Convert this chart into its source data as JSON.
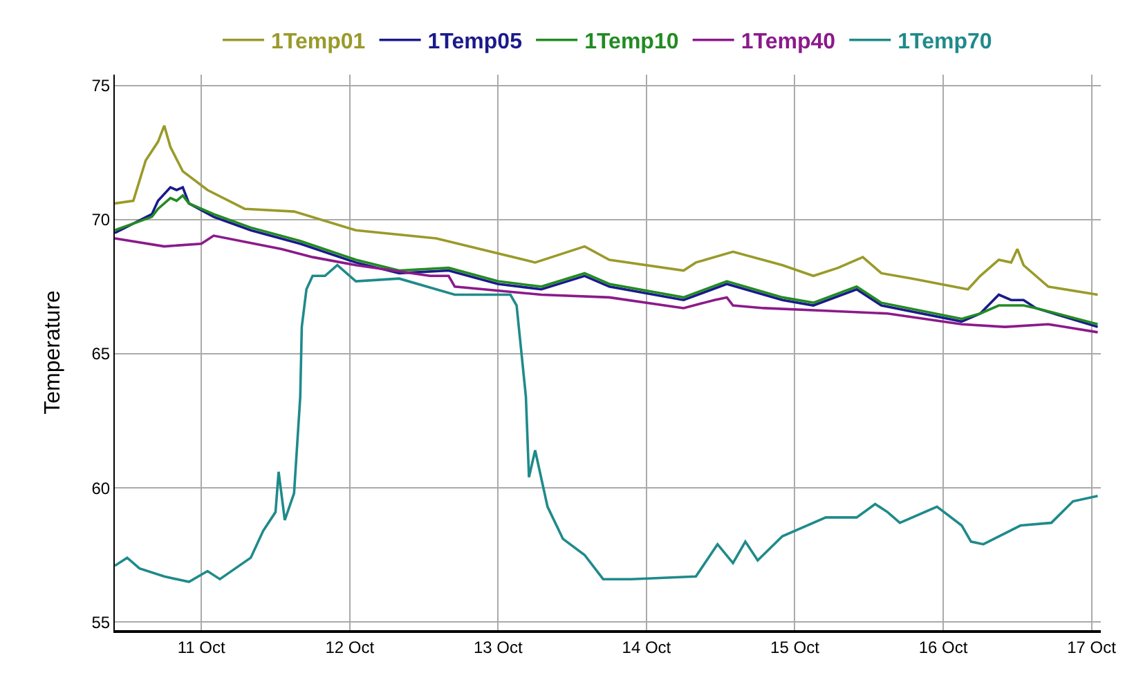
{
  "chart_data": {
    "type": "line",
    "ylabel": "Temperature",
    "xlim": [
      "--10-10T10:00",
      "--10-17T01:30"
    ],
    "xticks": [
      {
        "value": "--10-11",
        "label": "11 Oct"
      },
      {
        "value": "--10-12",
        "label": "12 Oct"
      },
      {
        "value": "--10-13",
        "label": "13 Oct"
      },
      {
        "value": "--10-14",
        "label": "14 Oct"
      },
      {
        "value": "--10-15",
        "label": "15 Oct"
      },
      {
        "value": "--10-16",
        "label": "16 Oct"
      },
      {
        "value": "--10-17",
        "label": "17 Oct"
      }
    ],
    "ylim": [
      54.7,
      75.4
    ],
    "yticks": [
      55,
      60,
      65,
      70,
      75
    ],
    "grid": true,
    "legend": "top",
    "marker": "none",
    "line_style": "solid",
    "series": [
      {
        "name": "1Temp01",
        "color": "#9a9a2a",
        "x": [
          "--10-10T10:00",
          "--10-10T13:00",
          "--10-10T15:00",
          "--10-10T17:00",
          "--10-10T18:00",
          "--10-10T19:00",
          "--10-10T21:00",
          "--10-11T01:00",
          "--10-11T07:00",
          "--10-11T15:00",
          "--10-12T01:00",
          "--10-12T14:00",
          "--10-13T06:00",
          "--10-13T14:00",
          "--10-13T18:00",
          "--10-14T06:00",
          "--10-14T08:00",
          "--10-14T14:00",
          "--10-14T22:00",
          "--10-15T03:00",
          "--10-15T07:00",
          "--10-15T11:00",
          "--10-15T14:00",
          "--10-15T19:00",
          "--10-16T04:00",
          "--10-16T06:00",
          "--10-16T09:00",
          "--10-16T11:00",
          "--10-16T12:00",
          "--10-16T13:00",
          "--10-16T17:00",
          "--10-17T01:00"
        ],
        "values": [
          70.6,
          70.7,
          72.2,
          72.9,
          73.5,
          72.7,
          71.8,
          71.1,
          70.4,
          70.3,
          69.6,
          69.3,
          68.4,
          69.0,
          68.5,
          68.1,
          68.4,
          68.8,
          68.3,
          67.9,
          68.2,
          68.6,
          68.0,
          67.8,
          67.4,
          67.9,
          68.5,
          68.4,
          68.9,
          68.3,
          67.5,
          67.2
        ]
      },
      {
        "name": "1Temp05",
        "color": "#1a1a8c",
        "x": [
          "--10-10T10:00",
          "--10-10T16:00",
          "--10-10T17:00",
          "--10-10T19:00",
          "--10-10T20:00",
          "--10-10T21:00",
          "--10-10T22:00",
          "--10-11T02:00",
          "--10-11T08:00",
          "--10-11T16:00",
          "--10-12T01:00",
          "--10-12T08:00",
          "--10-12T16:00",
          "--10-13T00:00",
          "--10-13T07:00",
          "--10-13T14:00",
          "--10-13T18:00",
          "--10-14T06:00",
          "--10-14T13:00",
          "--10-14T22:00",
          "--10-15T03:00",
          "--10-15T10:00",
          "--10-15T14:00",
          "--10-16T03:00",
          "--10-16T06:00",
          "--10-16T09:00",
          "--10-16T11:00",
          "--10-16T13:00",
          "--10-16T15:00",
          "--10-17T01:00"
        ],
        "values": [
          69.5,
          70.2,
          70.7,
          71.2,
          71.1,
          71.2,
          70.6,
          70.1,
          69.6,
          69.1,
          68.4,
          68.0,
          68.1,
          67.6,
          67.4,
          67.9,
          67.5,
          67.0,
          67.6,
          67.0,
          66.8,
          67.4,
          66.8,
          66.2,
          66.5,
          67.2,
          67.0,
          67.0,
          66.7,
          66.0
        ]
      },
      {
        "name": "1Temp10",
        "color": "#228b22",
        "x": [
          "--10-10T10:00",
          "--10-10T16:00",
          "--10-10T17:00",
          "--10-10T19:00",
          "--10-10T20:00",
          "--10-10T21:00",
          "--10-10T22:00",
          "--10-11T02:00",
          "--10-11T08:00",
          "--10-11T16:00",
          "--10-12T01:00",
          "--10-12T08:00",
          "--10-12T16:00",
          "--10-13T00:00",
          "--10-13T07:00",
          "--10-13T14:00",
          "--10-13T18:00",
          "--10-14T06:00",
          "--10-14T13:00",
          "--10-14T22:00",
          "--10-15T03:00",
          "--10-15T10:00",
          "--10-15T14:00",
          "--10-16T03:00",
          "--10-16T06:00",
          "--10-16T09:00",
          "--10-16T11:00",
          "--10-16T13:00",
          "--10-16T15:00",
          "--10-17T01:00"
        ],
        "values": [
          69.6,
          70.1,
          70.4,
          70.8,
          70.7,
          70.9,
          70.6,
          70.2,
          69.7,
          69.2,
          68.5,
          68.1,
          68.2,
          67.7,
          67.5,
          68.0,
          67.6,
          67.1,
          67.7,
          67.1,
          66.9,
          67.5,
          66.9,
          66.3,
          66.5,
          66.8,
          66.8,
          66.8,
          66.7,
          66.1
        ]
      },
      {
        "name": "1Temp40",
        "color": "#8b1a8b",
        "x": [
          "--10-10T10:00",
          "--10-10T18:00",
          "--10-11T00:00",
          "--10-11T02:00",
          "--10-11T13:00",
          "--10-11T18:00",
          "--10-12T01:00",
          "--10-12T13:00",
          "--10-12T16:00",
          "--10-12T17:00",
          "--10-13T07:00",
          "--10-13T18:00",
          "--10-14T06:00",
          "--10-14T11:00",
          "--10-14T13:00",
          "--10-14T14:00",
          "--10-14T19:00",
          "--10-15T05:00",
          "--10-15T15:00",
          "--10-16T03:00",
          "--10-16T10:00",
          "--10-16T17:00",
          "--10-17T01:00"
        ],
        "values": [
          69.3,
          69.0,
          69.1,
          69.4,
          68.9,
          68.6,
          68.3,
          67.9,
          67.9,
          67.5,
          67.2,
          67.1,
          66.7,
          67.0,
          67.1,
          66.8,
          66.7,
          66.6,
          66.5,
          66.1,
          66.0,
          66.1,
          65.8
        ]
      },
      {
        "name": "1Temp70",
        "color": "#1f8a8a",
        "x": [
          "--10-10T10:00",
          "--10-10T12:00",
          "--10-10T14:00",
          "--10-10T18:00",
          "--10-10T22:00",
          "--10-11T01:00",
          "--10-11T03:00",
          "--10-11T08:00",
          "--10-11T10:00",
          "--10-11T12:00",
          "--10-11T12:30",
          "--10-11T13:30",
          "--10-11T15:00",
          "--10-11T16:00",
          "--10-11T16:15",
          "--10-11T17:00",
          "--10-11T18:00",
          "--10-11T20:00",
          "--10-11T22:00",
          "--10-12T01:00",
          "--10-12T08:00",
          "--10-12T17:00",
          "--10-13T02:00",
          "--10-13T03:00",
          "--10-13T04:30",
          "--10-13T05:00",
          "--10-13T06:00",
          "--10-13T08:00",
          "--10-13T10:30",
          "--10-13T14:00",
          "--10-13T17:00",
          "--10-13T21:30",
          "--10-14T08:00",
          "--10-14T11:30",
          "--10-14T14:00",
          "--10-14T16:00",
          "--10-14T18:00",
          "--10-14T22:00",
          "--10-15T05:00",
          "--10-15T10:00",
          "--10-15T13:00",
          "--10-15T15:00",
          "--10-15T17:00",
          "--10-15T23:00",
          "--10-16T03:00",
          "--10-16T04:30",
          "--10-16T06:30",
          "--10-16T12:30",
          "--10-16T17:30",
          "--10-16T21:00",
          "--10-17T01:00"
        ],
        "values": [
          57.1,
          57.4,
          57.0,
          56.7,
          56.5,
          56.9,
          56.6,
          57.4,
          58.4,
          59.1,
          60.6,
          58.8,
          59.8,
          63.4,
          66.0,
          67.4,
          67.9,
          67.9,
          68.3,
          67.7,
          67.8,
          67.2,
          67.2,
          66.8,
          63.4,
          60.4,
          61.4,
          59.3,
          58.1,
          57.5,
          56.6,
          56.6,
          56.7,
          57.9,
          57.2,
          58.0,
          57.3,
          58.2,
          58.9,
          58.9,
          59.4,
          59.1,
          58.7,
          59.3,
          58.6,
          58.0,
          57.9,
          58.6,
          58.7,
          59.5,
          59.7
        ]
      }
    ]
  }
}
